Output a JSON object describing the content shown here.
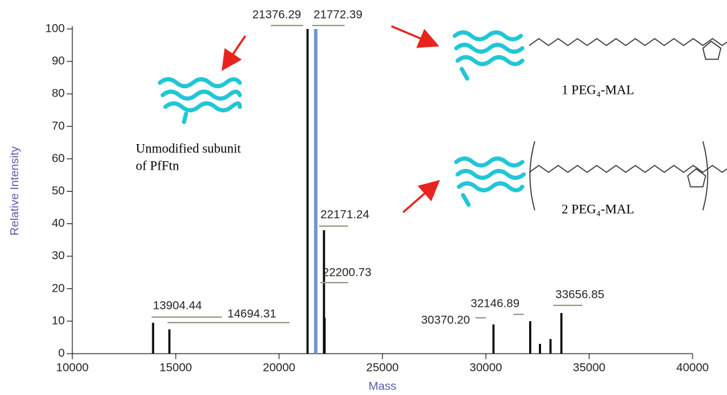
{
  "chart_data": {
    "type": "stick",
    "x_label": "Mass",
    "y_label": "Relative Intensity",
    "xlim": [
      10000,
      40000
    ],
    "ylim": [
      0,
      100
    ],
    "xticks": [
      10000,
      15000,
      20000,
      25000,
      30000,
      35000,
      40000
    ],
    "yticks": [
      0,
      10,
      20,
      30,
      40,
      50,
      60,
      70,
      80,
      90,
      100
    ],
    "x": [
      13904.44,
      14694.31,
      21376.29,
      21772.39,
      22171.24,
      22200.73,
      30370.2,
      32146.89,
      32620,
      33130,
      33656.85
    ],
    "values": [
      9.5,
      7.5,
      100,
      100,
      38,
      11,
      9,
      10,
      3,
      4.5,
      12.5
    ],
    "peak_labels": [
      "13904.44",
      "14694.31",
      "21376.29",
      "21772.39",
      "22171.24",
      "22200.73",
      "30370.20",
      "32146.89",
      null,
      null,
      "33656.85"
    ],
    "colors": [
      "#000000",
      "#000000",
      "#000000",
      "#6f93c8",
      "#000000",
      "#000000",
      "#000000",
      "#000000",
      "#000000",
      "#000000",
      "#000000"
    ],
    "annotations": [
      "Unmodified subunit",
      "of PfFtn",
      "1 PEG₄-MAL",
      "2 PEG₄-MAL"
    ]
  }
}
